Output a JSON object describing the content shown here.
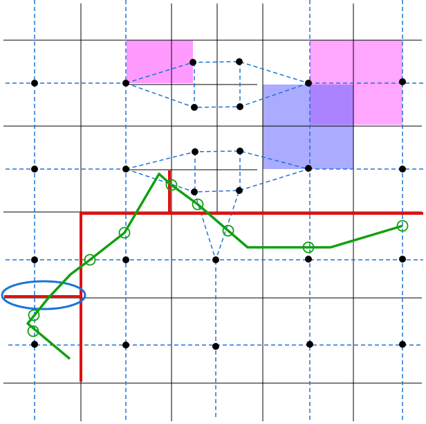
{
  "colors": {
    "background": "#ffffff",
    "grid": "#000000",
    "dual_grid": "#1a73d9",
    "dashed_graph": "#1a73d9",
    "vertex": "#000000",
    "red_path": "#e01010",
    "green_path": "#10a010",
    "highlight": "#1a73d9",
    "pink_region": "#ff88ff",
    "blue_region": "#7777ff"
  },
  "icons": {
    "vertex": "filled-circle",
    "sample": "hollow-circle",
    "highlight": "ellipse"
  }
}
